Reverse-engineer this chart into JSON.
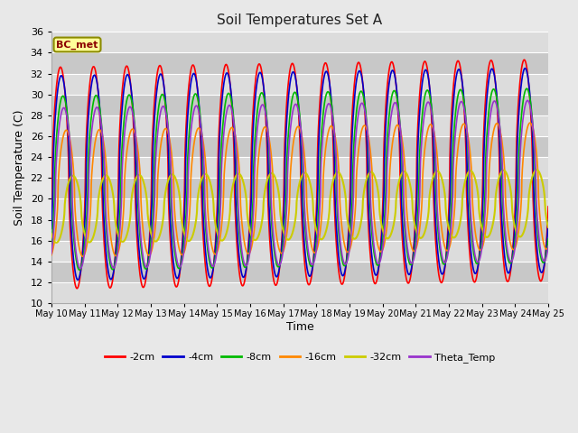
{
  "title": "Soil Temperatures Set A",
  "xlabel": "Time",
  "ylabel": "Soil Temperature (C)",
  "ylim": [
    10,
    36
  ],
  "label_text": "BC_met",
  "series_colors": {
    "-2cm": "#FF0000",
    "-4cm": "#0000CC",
    "-8cm": "#00BB00",
    "-16cm": "#FF8800",
    "-32cm": "#CCCC00",
    "Theta_Temp": "#9933CC"
  },
  "series_lw": {
    "-2cm": 1.2,
    "-4cm": 1.2,
    "-8cm": 1.2,
    "-16cm": 1.2,
    "-32cm": 1.5,
    "Theta_Temp": 1.2
  },
  "bg_light": "#DCDCDC",
  "bg_dark": "#C8C8C8",
  "grid_color": "#FFFFFF",
  "tick_dates": [
    "May 10",
    "May 11",
    "May 12",
    "May 13",
    "May 14",
    "May 15",
    "May 16",
    "May 17",
    "May 18",
    "May 19",
    "May 20",
    "May 21",
    "May 22",
    "May 23",
    "May 24",
    "May 25"
  ],
  "figsize": [
    6.4,
    4.8
  ],
  "dpi": 100
}
